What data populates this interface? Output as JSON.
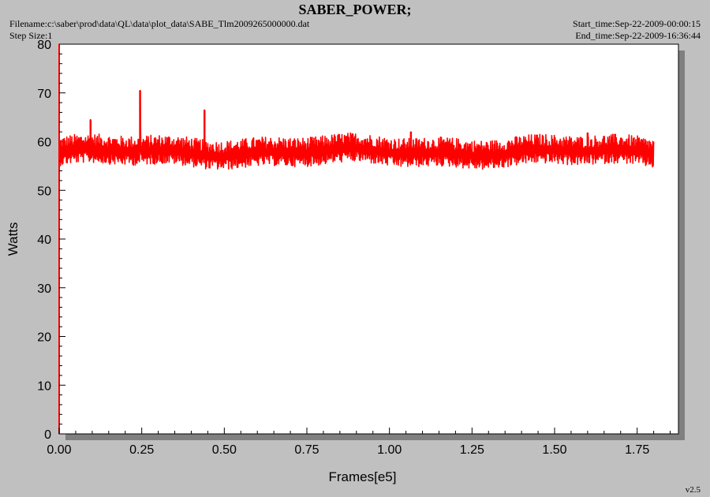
{
  "header": {
    "title": "SABER_POWER;",
    "filename": "Filename:c:\\saber\\prod\\data\\QL\\data\\plot_data\\SABE_Tlm2009265000000.dat",
    "step_size": "Step Size:1",
    "start_time": "Start_time:Sep-22-2009-00:00:15",
    "end_time": "End_time:Sep-22-2009-16:36:44",
    "version": "v2.5"
  },
  "colors": {
    "background": "#c0c0c0",
    "plot_area": "#ffffff",
    "series": "#ff0000",
    "shadow": "#808080"
  },
  "chart_data": {
    "type": "line",
    "title": "SABER_POWER;",
    "xlabel": "Frames[e5]",
    "ylabel": "Watts",
    "xlim": [
      0,
      1.875
    ],
    "ylim": [
      0,
      80
    ],
    "x_ticks": [
      "0.00",
      "0.25",
      "0.50",
      "0.75",
      "1.00",
      "1.25",
      "1.50",
      "1.75"
    ],
    "y_ticks": [
      "0",
      "10",
      "20",
      "30",
      "40",
      "50",
      "60",
      "70",
      "80"
    ],
    "grid": false,
    "series": [
      {
        "color": "#ff0000",
        "x_range": [
          0,
          1.8
        ],
        "band_center": 57.8,
        "band_low": 55,
        "band_high": 61,
        "spikes": [
          {
            "x": 0.095,
            "y": 64.5
          },
          {
            "x": 0.245,
            "y": 70.5
          },
          {
            "x": 0.44,
            "y": 66.5
          },
          {
            "x": 1.065,
            "y": 62.0
          },
          {
            "x": 1.6,
            "y": 61.8
          }
        ]
      }
    ]
  }
}
